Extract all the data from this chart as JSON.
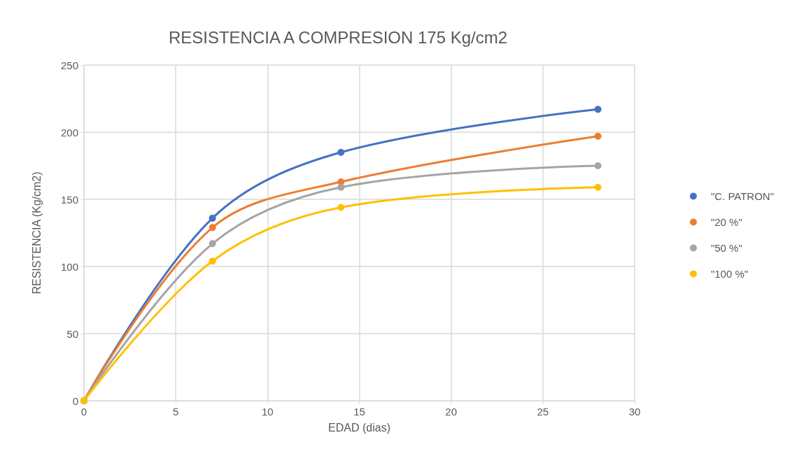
{
  "chart_data": {
    "type": "line",
    "title": "RESISTENCIA A COMPRESION 175 Kg/cm2",
    "xlabel": "EDAD (dias)",
    "ylabel": "RESISTENCIA (Kg/cm2)",
    "x": [
      0,
      7,
      14,
      28
    ],
    "series": [
      {
        "name": "\"C. PATRON\"",
        "color": "#4472c4",
        "values": [
          0,
          136,
          185,
          217
        ]
      },
      {
        "name": "\"20 %\"",
        "color": "#ed7d31",
        "values": [
          0,
          129,
          163,
          197
        ]
      },
      {
        "name": "\"50 %\"",
        "color": "#a5a5a5",
        "values": [
          0,
          117,
          159,
          175
        ]
      },
      {
        "name": "\"100 %\"",
        "color": "#ffc000",
        "values": [
          0,
          104,
          144,
          159
        ]
      }
    ],
    "xlim": [
      0,
      30
    ],
    "xticks": [
      0,
      5,
      10,
      15,
      20,
      25,
      30
    ],
    "ylim": [
      0,
      250
    ],
    "yticks": [
      0,
      50,
      100,
      150,
      200,
      250
    ],
    "grid": true,
    "legend": "right",
    "marker": "circle",
    "line_style": "solid"
  }
}
